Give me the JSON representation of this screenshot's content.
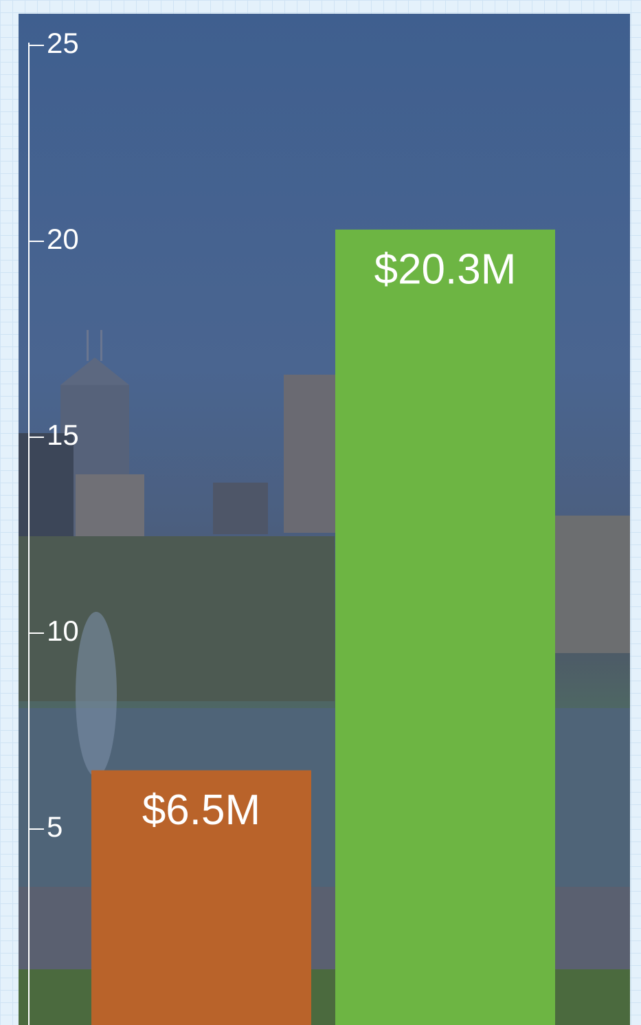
{
  "chart_data": {
    "type": "bar",
    "categories": [
      null,
      null
    ],
    "values": [
      6.5,
      20.3
    ],
    "value_labels": [
      "$6.5M",
      "$20.3M"
    ],
    "colors": [
      "#b9632a",
      "#6db543"
    ],
    "ylim": [
      0,
      25
    ],
    "yticks": [
      5,
      10,
      15,
      20,
      25
    ],
    "grid": false
  }
}
